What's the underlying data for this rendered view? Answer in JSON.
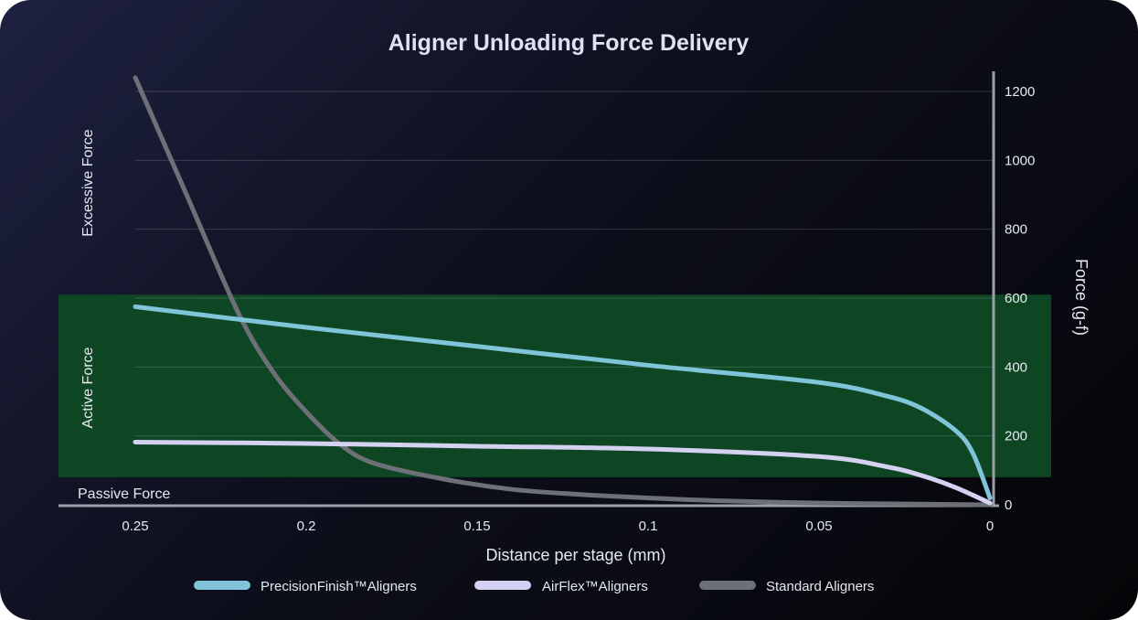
{
  "chart_data": {
    "type": "line",
    "title": "Aligner Unloading Force Delivery",
    "xlabel": "Distance per stage (mm)",
    "ylabel": "Force (g-f)",
    "xlim": [
      0.25,
      0
    ],
    "ylim": [
      0,
      1200
    ],
    "x_ticks": [
      "0.25",
      "0.2",
      "0.15",
      "0.1",
      "0.05",
      "0"
    ],
    "x_tick_values": [
      0.25,
      0.2,
      0.15,
      0.1,
      0.05,
      0
    ],
    "y_ticks": [
      "0",
      "200",
      "400",
      "600",
      "800",
      "1000",
      "1200"
    ],
    "y_tick_values": [
      0,
      200,
      400,
      600,
      800,
      1000,
      1200
    ],
    "grid": true,
    "legend_position": "bottom",
    "zones": {
      "excessive_label": "Excessive Force",
      "active_label": "Active Force",
      "passive_label": "Passive Force",
      "active_range": [
        80,
        610
      ],
      "active_color": "#0f4a25"
    },
    "series": [
      {
        "name": "PrecisionFinish™Aligners",
        "color": "#7fc4d8",
        "x": [
          0.25,
          0.2,
          0.15,
          0.1,
          0.05,
          0.03,
          0.02,
          0.01,
          0.005,
          0
        ],
        "y": [
          575,
          515,
          460,
          405,
          355,
          315,
          280,
          215,
          150,
          20
        ]
      },
      {
        "name": "AirFlex™Aligners",
        "color": "#d4d2f0",
        "x": [
          0.25,
          0.2,
          0.15,
          0.1,
          0.05,
          0.03,
          0.02,
          0.01,
          0
        ],
        "y": [
          182,
          178,
          170,
          162,
          140,
          110,
          85,
          50,
          5
        ]
      },
      {
        "name": "Standard Aligners",
        "color": "#6e7078",
        "x": [
          0.25,
          0.235,
          0.22,
          0.21,
          0.2,
          0.19,
          0.18,
          0.16,
          0.14,
          0.12,
          0.1,
          0.08,
          0.05,
          0.02,
          0
        ],
        "y": [
          1240,
          900,
          560,
          390,
          270,
          175,
          120,
          75,
          45,
          30,
          20,
          12,
          5,
          2,
          0
        ]
      }
    ]
  }
}
